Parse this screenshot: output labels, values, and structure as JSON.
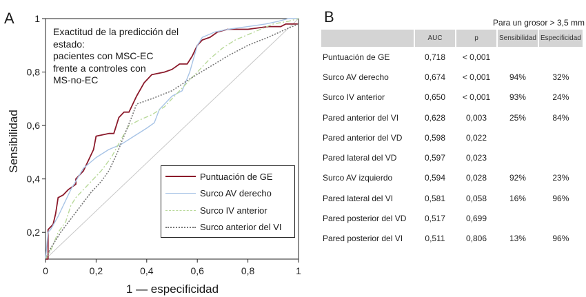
{
  "panel_a": {
    "letter": "A",
    "annotation_lines": [
      "Exactitud de la predicción del",
      "estado:",
      "pacientes con MSC-EC",
      "frente a controles con",
      "MS-no-EC"
    ],
    "legend": [
      {
        "name": "Puntuación de GE",
        "color": "#8b1a2b",
        "style": "solid"
      },
      {
        "name": "Surco AV derecho",
        "color": "#a8c4e6",
        "style": "solid"
      },
      {
        "name": "Surco IV anterior",
        "color": "#b9d99a",
        "style": "dashdot"
      },
      {
        "name": "Surco anterior del VI",
        "color": "#777777",
        "style": "dotted"
      }
    ]
  },
  "chart_data": {
    "type": "line",
    "xlabel": "1 — especificidad",
    "ylabel": "Sensibilidad",
    "xlim": [
      0,
      1
    ],
    "ylim": [
      0.1,
      1
    ],
    "x_ticks": [
      {
        "value": 0,
        "label": "0"
      },
      {
        "value": 0.2,
        "label": "0,2"
      },
      {
        "value": 0.4,
        "label": "0,4"
      },
      {
        "value": 0.6,
        "label": "0,6"
      },
      {
        "value": 0.8,
        "label": "0,8"
      },
      {
        "value": 1,
        "label": "1"
      }
    ],
    "y_ticks": [
      {
        "value": 0.2,
        "label": "0,2"
      },
      {
        "value": 0.4,
        "label": "0,4"
      },
      {
        "value": 0.6,
        "label": "0,6"
      },
      {
        "value": 0.8,
        "label": "0,8"
      },
      {
        "value": 1,
        "label": "1"
      }
    ],
    "grid": false,
    "legend_position": "bottom-right",
    "reference_line": [
      [
        0,
        0.1
      ],
      [
        1,
        1
      ]
    ],
    "series": [
      {
        "name": "Puntuación de GE",
        "color": "#8b1a2b",
        "style": "solid",
        "width": 1.8,
        "points": [
          [
            0,
            0.1
          ],
          [
            0.01,
            0.1
          ],
          [
            0.01,
            0.21
          ],
          [
            0.03,
            0.23
          ],
          [
            0.04,
            0.27
          ],
          [
            0.05,
            0.33
          ],
          [
            0.07,
            0.34
          ],
          [
            0.09,
            0.36
          ],
          [
            0.12,
            0.38
          ],
          [
            0.12,
            0.4
          ],
          [
            0.15,
            0.43
          ],
          [
            0.17,
            0.47
          ],
          [
            0.19,
            0.51
          ],
          [
            0.2,
            0.56
          ],
          [
            0.25,
            0.57
          ],
          [
            0.27,
            0.57
          ],
          [
            0.29,
            0.63
          ],
          [
            0.31,
            0.65
          ],
          [
            0.33,
            0.65
          ],
          [
            0.36,
            0.71
          ],
          [
            0.39,
            0.76
          ],
          [
            0.42,
            0.79
          ],
          [
            0.47,
            0.8
          ],
          [
            0.5,
            0.81
          ],
          [
            0.53,
            0.83
          ],
          [
            0.56,
            0.83
          ],
          [
            0.58,
            0.86
          ],
          [
            0.6,
            0.9
          ],
          [
            0.62,
            0.92
          ],
          [
            0.65,
            0.93
          ],
          [
            0.68,
            0.95
          ],
          [
            0.72,
            0.96
          ],
          [
            0.8,
            0.96
          ],
          [
            0.88,
            0.97
          ],
          [
            0.93,
            0.97
          ],
          [
            0.95,
            0.98
          ],
          [
            1,
            0.98
          ]
        ]
      },
      {
        "name": "Surco AV derecho",
        "color": "#a8c4e6",
        "style": "solid",
        "width": 1.4,
        "points": [
          [
            0,
            0.1
          ],
          [
            0.01,
            0.2
          ],
          [
            0.02,
            0.21
          ],
          [
            0.05,
            0.26
          ],
          [
            0.1,
            0.36
          ],
          [
            0.15,
            0.44
          ],
          [
            0.2,
            0.48
          ],
          [
            0.25,
            0.51
          ],
          [
            0.3,
            0.53
          ],
          [
            0.35,
            0.56
          ],
          [
            0.4,
            0.59
          ],
          [
            0.43,
            0.61
          ],
          [
            0.45,
            0.66
          ],
          [
            0.5,
            0.71
          ],
          [
            0.54,
            0.73
          ],
          [
            0.57,
            0.8
          ],
          [
            0.6,
            0.9
          ],
          [
            0.62,
            0.93
          ],
          [
            0.67,
            0.95
          ],
          [
            0.72,
            0.96
          ],
          [
            0.8,
            0.97
          ],
          [
            0.87,
            0.98
          ],
          [
            0.92,
            0.99
          ],
          [
            0.96,
            1
          ],
          [
            1,
            1
          ]
        ]
      },
      {
        "name": "Surco IV anterior",
        "color": "#b9d99a",
        "style": "dashdot",
        "width": 1.4,
        "points": [
          [
            0,
            0.1
          ],
          [
            0.02,
            0.13
          ],
          [
            0.05,
            0.2
          ],
          [
            0.08,
            0.24
          ],
          [
            0.1,
            0.3
          ],
          [
            0.12,
            0.33
          ],
          [
            0.15,
            0.36
          ],
          [
            0.18,
            0.39
          ],
          [
            0.22,
            0.43
          ],
          [
            0.26,
            0.48
          ],
          [
            0.3,
            0.55
          ],
          [
            0.33,
            0.6
          ],
          [
            0.37,
            0.62
          ],
          [
            0.42,
            0.64
          ],
          [
            0.47,
            0.67
          ],
          [
            0.5,
            0.7
          ],
          [
            0.55,
            0.75
          ],
          [
            0.6,
            0.8
          ],
          [
            0.65,
            0.85
          ],
          [
            0.7,
            0.89
          ],
          [
            0.75,
            0.92
          ],
          [
            0.8,
            0.94
          ],
          [
            0.85,
            0.96
          ],
          [
            0.9,
            0.98
          ],
          [
            0.96,
            0.99
          ],
          [
            1,
            1
          ]
        ]
      },
      {
        "name": "Surco anterior del VI",
        "color": "#777777",
        "style": "dotted",
        "width": 1.6,
        "points": [
          [
            0,
            0.1
          ],
          [
            0.02,
            0.14
          ],
          [
            0.06,
            0.2
          ],
          [
            0.1,
            0.25
          ],
          [
            0.14,
            0.3
          ],
          [
            0.18,
            0.35
          ],
          [
            0.22,
            0.39
          ],
          [
            0.25,
            0.43
          ],
          [
            0.28,
            0.49
          ],
          [
            0.31,
            0.56
          ],
          [
            0.34,
            0.63
          ],
          [
            0.36,
            0.68
          ],
          [
            0.42,
            0.7
          ],
          [
            0.5,
            0.73
          ],
          [
            0.58,
            0.78
          ],
          [
            0.65,
            0.82
          ],
          [
            0.72,
            0.86
          ],
          [
            0.8,
            0.9
          ],
          [
            0.88,
            0.93
          ],
          [
            0.95,
            0.96
          ],
          [
            1,
            0.98
          ]
        ]
      }
    ]
  },
  "panel_b": {
    "letter": "B",
    "note": "Para un grosor > 3,5 mm",
    "headers": [
      "",
      "AUC",
      "p",
      "Sensibilidad",
      "Especificidad"
    ],
    "rows": [
      {
        "name": "Puntuación de GE",
        "auc": "0,718",
        "p": "< 0,001",
        "sens": "",
        "spec": ""
      },
      {
        "name": "Surco AV derecho",
        "auc": "0,674",
        "p": "< 0,001",
        "sens": "94%",
        "spec": "32%"
      },
      {
        "name": "Surco IV anterior",
        "auc": "0,650",
        "p": "< 0,001",
        "sens": "93%",
        "spec": "24%"
      },
      {
        "name": "Pared anterior del VI",
        "auc": "0,628",
        "p": "0,003",
        "sens": "25%",
        "spec": "84%"
      },
      {
        "name": "Pared anterior del VD",
        "auc": "0,598",
        "p": "0,022",
        "sens": "",
        "spec": ""
      },
      {
        "name": "Pared lateral del VD",
        "auc": "0,597",
        "p": "0,023",
        "sens": "",
        "spec": ""
      },
      {
        "name": "Surco AV izquierdo",
        "auc": "0,594",
        "p": "0,028",
        "sens": "92%",
        "spec": "23%"
      },
      {
        "name": "Pared lateral del VI",
        "auc": "0,581",
        "p": "0,058",
        "sens": "16%",
        "spec": "96%"
      },
      {
        "name": "Pared posterior del VD",
        "auc": "0,517",
        "p": "0,699",
        "sens": "",
        "spec": ""
      },
      {
        "name": "Pared posterior del VI",
        "auc": "0,511",
        "p": "0,806",
        "sens": "13%",
        "spec": "96%"
      }
    ]
  }
}
